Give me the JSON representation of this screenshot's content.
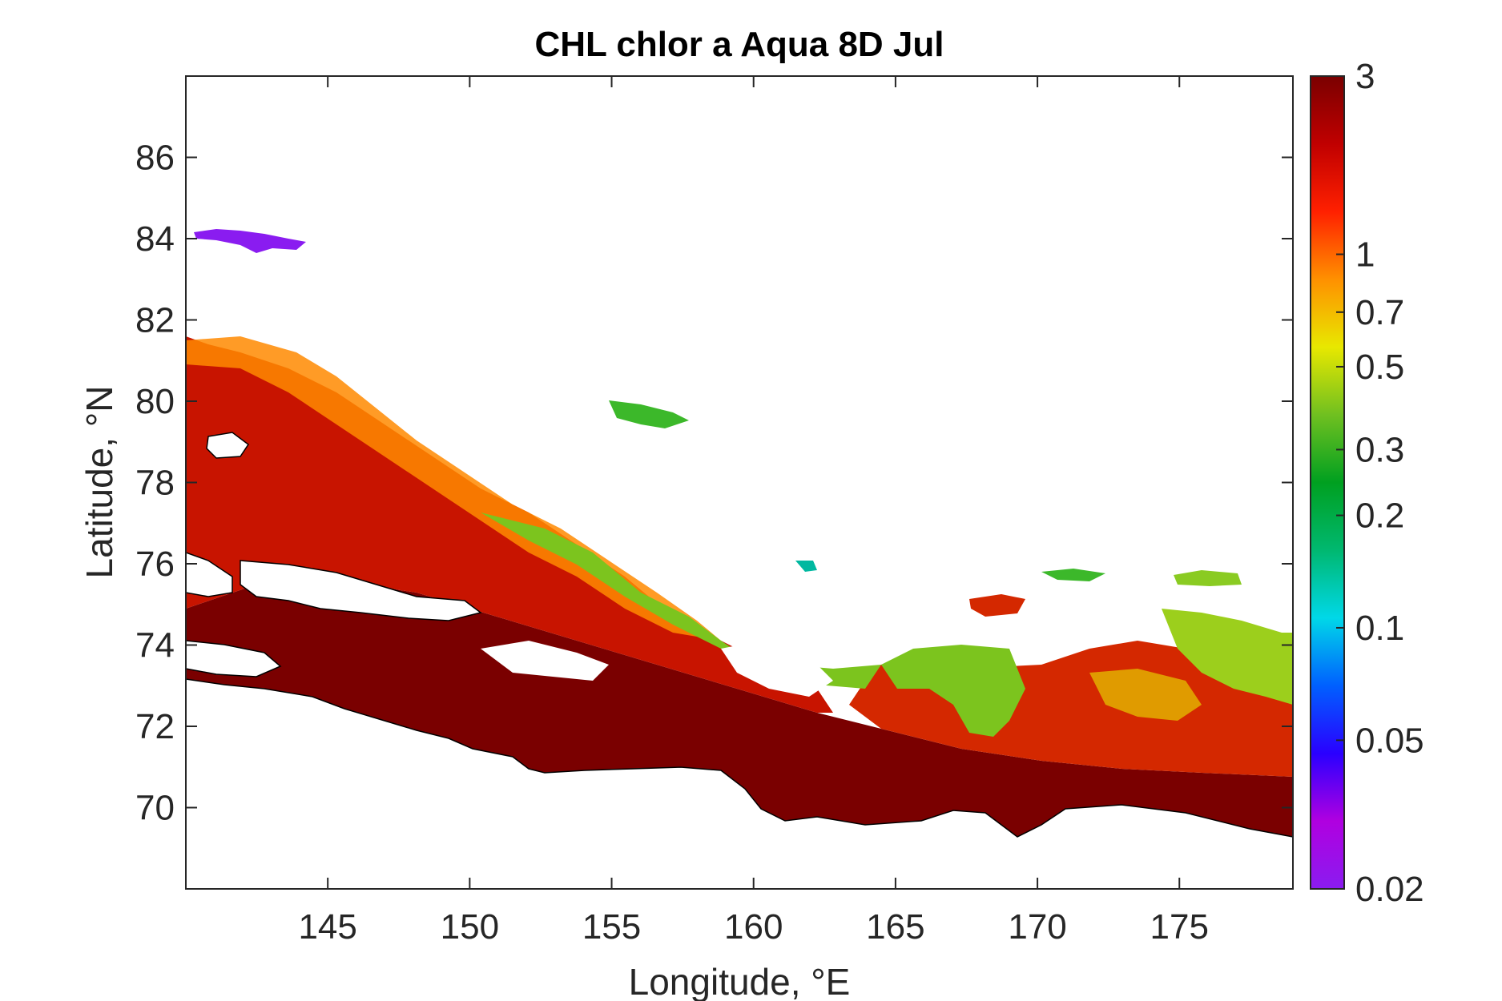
{
  "title": "CHL chlor a Aqua 8D Jul",
  "axes": {
    "xlabel": "Longitude, °E",
    "ylabel": "Latitude, °N",
    "xlim": [
      140,
      179
    ],
    "ylim": [
      68,
      88
    ],
    "xticks": [
      145,
      150,
      155,
      160,
      165,
      170,
      175
    ],
    "yticks": [
      70,
      72,
      74,
      76,
      78,
      80,
      82,
      84,
      86
    ],
    "grid": false
  },
  "colorbar": {
    "scale": "log",
    "range": [
      0.02,
      3
    ],
    "ticks": [
      0.02,
      0.05,
      0.1,
      0.2,
      0.3,
      0.5,
      0.7,
      1,
      3
    ],
    "tick_labels": [
      "0.02",
      "0.05",
      "0.1",
      "0.2",
      "0.3",
      "0.5",
      "0.7",
      "1",
      "3"
    ],
    "colormap": [
      "#8a1cf0",
      "#b000e0",
      "#2a00ff",
      "#0060ff",
      "#00d8e8",
      "#00b870",
      "#00a020",
      "#70c020",
      "#e8e800",
      "#ff9000",
      "#ff2000",
      "#c00000",
      "#7a0000"
    ]
  },
  "map_colors": {
    "coast": "#000000",
    "shelf": "#7a0000",
    "midshelf": "#e02000",
    "edge": "#ff8a00",
    "ice_edge": "#7cc41e"
  }
}
